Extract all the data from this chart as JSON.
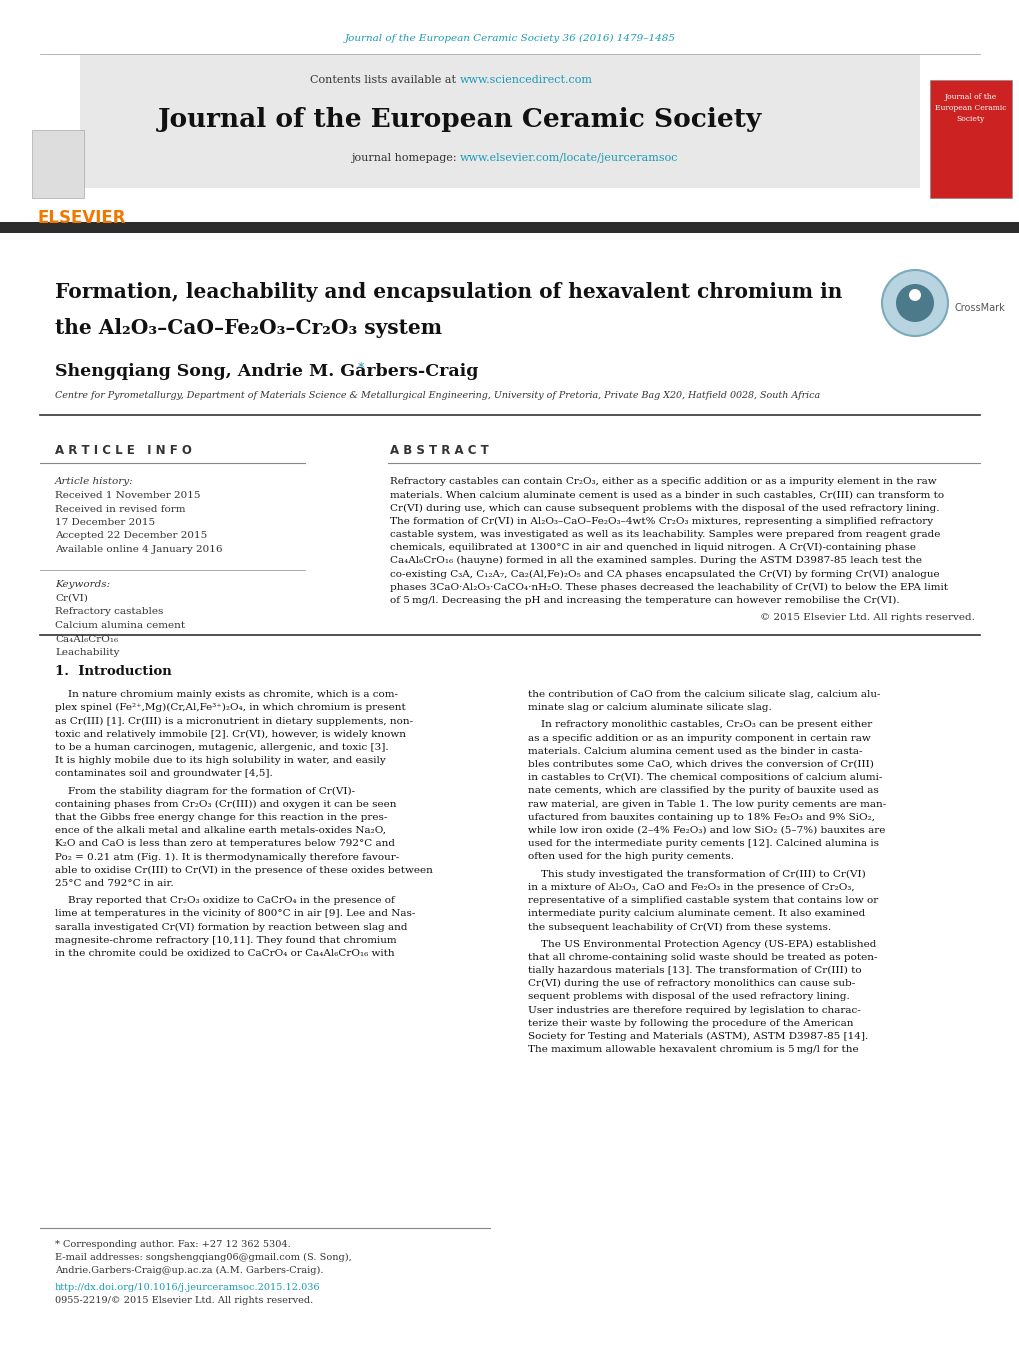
{
  "page_bg": "#ffffff",
  "top_journal_ref": "Journal of the European Ceramic Society 36 (2016) 1479–1485",
  "top_journal_color": "#1a9ab5",
  "header_bg": "#e8e8e8",
  "header_journal_name": "Journal of the European Ceramic Society",
  "header_content_text": "Contents lists available at ",
  "header_content_link": "www.sciencedirect.com",
  "header_homepage_text": "journal homepage: ",
  "header_homepage_link": "www.elsevier.com/locate/jeurceramsoc",
  "elsevier_color": "#f07800",
  "dark_bar_color": "#2d2d2d",
  "title_line1": "Formation, leachability and encapsulation of hexavalent chromium in",
  "title_line2": "the Al₂O₃–CaO–Fe₂O₃–Cr₂O₃ system",
  "authors": "Shengqiang Song, Andrie M. Garbers-Craig",
  "affiliation": "Centre for Pyrometallurgy, Department of Materials Science & Metallurgical Engineering, University of Pretoria, Private Bag X20, Hatfield 0028, South Africa",
  "article_info_label": "A R T I C L E   I N F O",
  "abstract_label": "A B S T R A C T",
  "article_history_label": "Article history:",
  "received_1": "Received 1 November 2015",
  "received_revised": "Received in revised form",
  "received_revised_date": "17 December 2015",
  "accepted": "Accepted 22 December 2015",
  "available": "Available online 4 January 2016",
  "keywords_label": "Keywords:",
  "keyword1": "Cr(VI)",
  "keyword2": "Refractory castables",
  "keyword3": "Calcium alumina cement",
  "keyword4": "Ca₄Al₆CrO₁₆",
  "keyword5": "Leachability",
  "copyright": "© 2015 Elsevier Ltd. All rights reserved.",
  "intro_heading": "1.  Introduction",
  "footer_text1": "* Corresponding author. Fax: +27 12 362 5304.",
  "footer_text2": "E-mail addresses: songshengqiang06@gmail.com (S. Song),",
  "footer_text3": "Andrie.Garbers-Craig@up.ac.za (A.M. Garbers-Craig).",
  "footer_doi": "http://dx.doi.org/10.1016/j.jeurceramsoc.2015.12.036",
  "footer_issn": "0955-2219/© 2015 Elsevier Ltd. All rights reserved.",
  "link_color": "#1a9ab5",
  "text_color": "#000000",
  "section_color": "#2d2d2d",
  "abstract_lines": [
    "Refractory castables can contain Cr₂O₃, either as a specific addition or as a impurity element in the raw",
    "materials. When calcium aluminate cement is used as a binder in such castables, Cr(III) can transform to",
    "Cr(VI) during use, which can cause subsequent problems with the disposal of the used refractory lining.",
    "The formation of Cr(VI) in Al₂O₃–CaO–Fe₂O₃–4wt% Cr₂O₃ mixtures, representing a simplified refractory",
    "castable system, was investigated as well as its leachability. Samples were prepared from reagent grade",
    "chemicals, equilibrated at 1300°C in air and quenched in liquid nitrogen. A Cr(VI)-containing phase",
    "Ca₄Al₆CrO₁₆ (hauyne) formed in all the examined samples. During the ASTM D3987-85 leach test the",
    "co-existing C₃A, C₁₂A₇, Ca₂(Al,Fe)₂O₅ and CA phases encapsulated the Cr(VI) by forming Cr(VI) analogue",
    "phases 3CaO·Al₂O₃·CaCO₄·nH₂O. These phases decreased the leachability of Cr(VI) to below the EPA limit",
    "of 5 mg/l. Decreasing the pH and increasing the temperature can however remobilise the Cr(VI)."
  ],
  "intro_col1_lines1": [
    "    In nature chromium mainly exists as chromite, which is a com-",
    "plex spinel (Fe²⁺,Mg)(Cr,Al,Fe³⁺)₂O₄, in which chromium is present",
    "as Cr(III) [1]. Cr(III) is a micronutrient in dietary supplements, non-",
    "toxic and relatively immobile [2]. Cr(VI), however, is widely known",
    "to be a human carcinogen, mutagenic, allergenic, and toxic [3].",
    "It is highly mobile due to its high solubility in water, and easily",
    "contaminates soil and groundwater [4,5]."
  ],
  "intro_col1_lines2": [
    "    From the stability diagram for the formation of Cr(VI)-",
    "containing phases from Cr₂O₃ (Cr(III)) and oxygen it can be seen",
    "that the Gibbs free energy change for this reaction in the pres-",
    "ence of the alkali metal and alkaline earth metals-oxides Na₂O,",
    "K₂O and CaO is less than zero at temperatures below 792°C and",
    "Po₂ = 0.21 atm (Fig. 1). It is thermodynamically therefore favour-",
    "able to oxidise Cr(III) to Cr(VI) in the presence of these oxides between",
    "25°C and 792°C in air."
  ],
  "intro_col1_lines3": [
    "    Bray reported that Cr₂O₃ oxidize to CaCrO₄ in the presence of",
    "lime at temperatures in the vicinity of 800°C in air [9]. Lee and Nas-",
    "saralla investigated Cr(VI) formation by reaction between slag and",
    "magnesite-chrome refractory [10,11]. They found that chromium",
    "in the chromite could be oxidized to CaCrO₄ or Ca₄Al₆CrO₁₆ with"
  ],
  "intro_col2_lines1": [
    "the contribution of CaO from the calcium silicate slag, calcium alu-",
    "minate slag or calcium aluminate silicate slag."
  ],
  "intro_col2_lines2": [
    "    In refractory monolithic castables, Cr₂O₃ can be present either",
    "as a specific addition or as an impurity component in certain raw",
    "materials. Calcium alumina cement used as the binder in casta-",
    "bles contributes some CaO, which drives the conversion of Cr(III)",
    "in castables to Cr(VI). The chemical compositions of calcium alumi-",
    "nate cements, which are classified by the purity of bauxite used as",
    "raw material, are given in Table 1. The low purity cements are man-",
    "ufactured from bauxites containing up to 18% Fe₂O₃ and 9% SiO₂,",
    "while low iron oxide (2–4% Fe₂O₃) and low SiO₂ (5–7%) bauxites are",
    "used for the intermediate purity cements [12]. Calcined alumina is",
    "often used for the high purity cements."
  ],
  "intro_col2_lines3": [
    "    This study investigated the transformation of Cr(III) to Cr(VI)",
    "in a mixture of Al₂O₃, CaO and Fe₂O₃ in the presence of Cr₂O₃,",
    "representative of a simplified castable system that contains low or",
    "intermediate purity calcium aluminate cement. It also examined",
    "the subsequent leachability of Cr(VI) from these systems."
  ],
  "intro_col2_lines4": [
    "    The US Environmental Protection Agency (US-EPA) established",
    "that all chrome-containing solid waste should be treated as poten-",
    "tially hazardous materials [13]. The transformation of Cr(III) to",
    "Cr(VI) during the use of refractory monolithics can cause sub-",
    "sequent problems with disposal of the used refractory lining.",
    "User industries are therefore required by legislation to charac-",
    "terize their waste by following the procedure of the American",
    "Society for Testing and Materials (ASTM), ASTM D3987-85 [14].",
    "The maximum allowable hexavalent chromium is 5 mg/l for the"
  ]
}
